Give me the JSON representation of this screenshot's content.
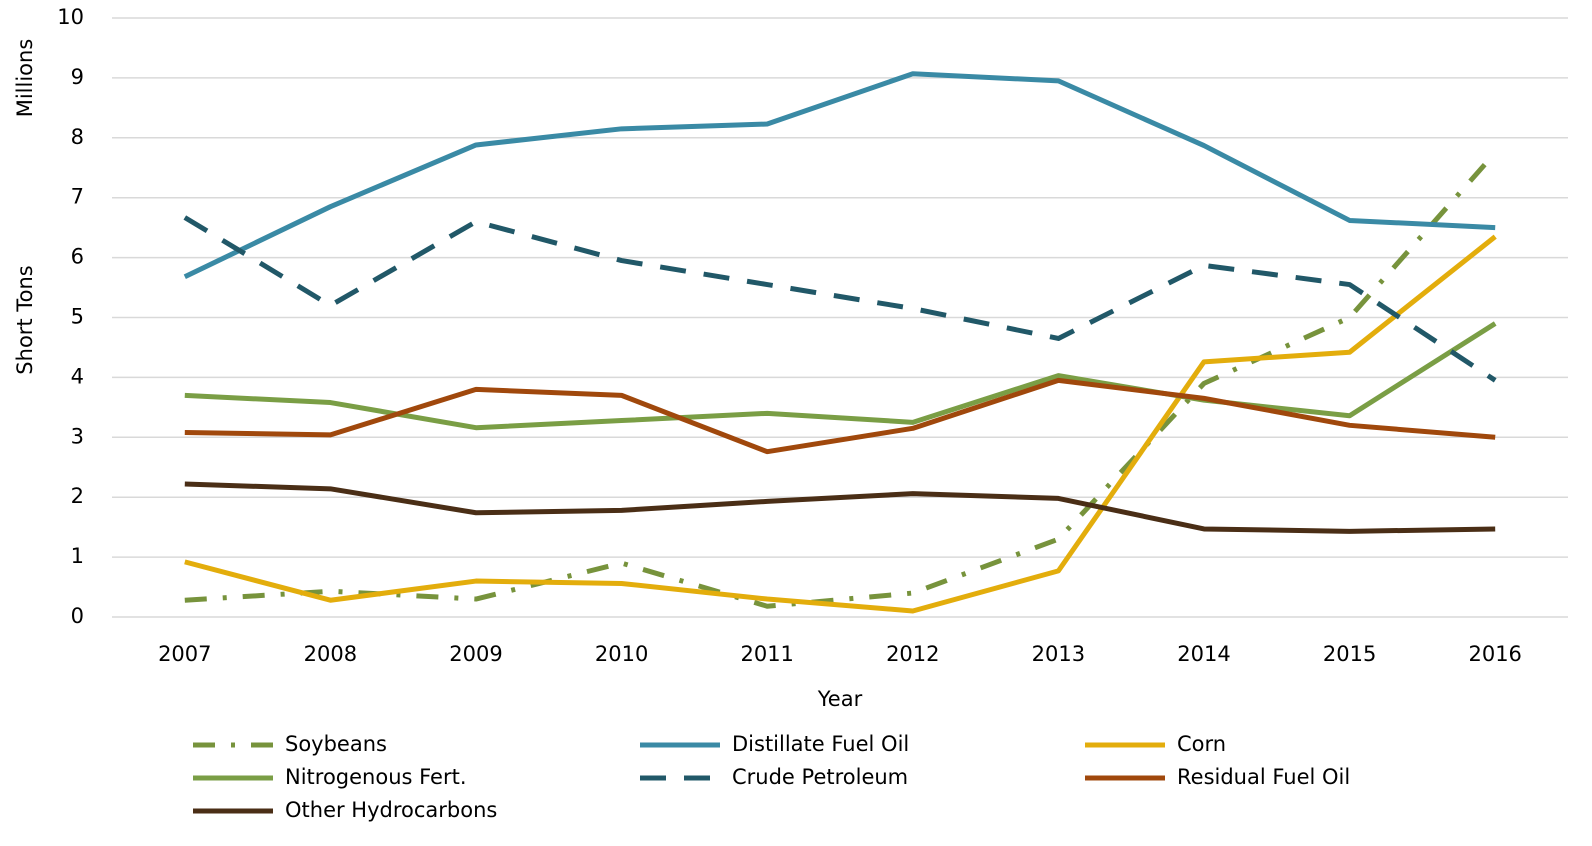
{
  "chart_data": {
    "type": "line",
    "x_label": "Year",
    "y_label": "Short Tons",
    "y_unit_label": "Millions",
    "categories": [
      "2007",
      "2008",
      "2009",
      "2010",
      "2011",
      "2012",
      "2013",
      "2014",
      "2015",
      "2016"
    ],
    "ylim": [
      0,
      10
    ],
    "yticks": [
      0,
      1,
      2,
      3,
      4,
      5,
      6,
      7,
      8,
      9,
      10
    ],
    "grid": true,
    "legend": "bottom",
    "series": [
      {
        "name": "Soybeans",
        "color": "#77933c",
        "line_style": "dashdot",
        "values": [
          0.28,
          0.43,
          0.3,
          0.9,
          0.18,
          0.4,
          1.3,
          3.9,
          5.0,
          7.75
        ]
      },
      {
        "name": "Distillate Fuel Oil",
        "color": "#3a8aa5",
        "line_style": "solid",
        "values": [
          5.68,
          6.85,
          7.88,
          8.15,
          8.23,
          9.07,
          8.95,
          7.87,
          6.62,
          6.5
        ]
      },
      {
        "name": "Corn",
        "color": "#e3ad0c",
        "line_style": "solid",
        "values": [
          0.92,
          0.28,
          0.6,
          0.56,
          0.3,
          0.1,
          0.77,
          4.26,
          4.42,
          6.35
        ]
      },
      {
        "name": "Nitrogenous Fert.",
        "color": "#7a9e45",
        "line_style": "solid",
        "values": [
          3.7,
          3.58,
          3.16,
          3.28,
          3.4,
          3.25,
          4.03,
          3.62,
          3.36,
          4.9
        ]
      },
      {
        "name": "Crude Petroleum",
        "color": "#215868",
        "line_style": "dashed",
        "values": [
          6.67,
          5.2,
          6.6,
          5.95,
          5.55,
          5.15,
          4.65,
          5.87,
          5.55,
          3.95
        ]
      },
      {
        "name": "Residual Fuel Oil",
        "color": "#a0480c",
        "line_style": "solid",
        "values": [
          3.08,
          3.04,
          3.8,
          3.7,
          2.76,
          3.15,
          3.95,
          3.65,
          3.2,
          3.0
        ]
      },
      {
        "name": "Other Hydrocarbons",
        "color": "#4a2e16",
        "line_style": "solid",
        "values": [
          2.22,
          2.14,
          1.74,
          1.78,
          1.93,
          2.06,
          1.98,
          1.47,
          1.43,
          1.47
        ]
      }
    ]
  }
}
